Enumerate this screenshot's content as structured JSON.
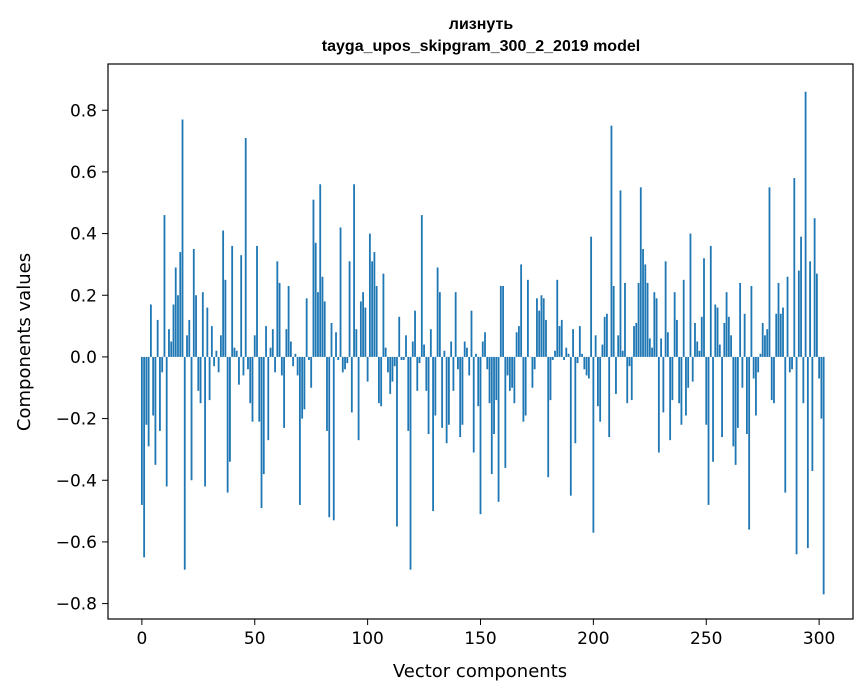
{
  "chart_data": {
    "type": "bar",
    "title": "лизнуть",
    "subtitle": "tayga_upos_skipgram_300_2_2019 model",
    "xlabel": "Vector components",
    "ylabel": "Components values",
    "xlim": [
      -15,
      315
    ],
    "ylim": [
      -0.85,
      0.95
    ],
    "xticks": [
      0,
      50,
      100,
      150,
      200,
      250,
      300
    ],
    "yticks": [
      -0.8,
      -0.6,
      -0.4,
      -0.2,
      0.0,
      0.2,
      0.4,
      0.6,
      0.8
    ],
    "ytick_labels": [
      "−0.8",
      "−0.6",
      "−0.4",
      "−0.2",
      "0.0",
      "0.2",
      "0.4",
      "0.6",
      "0.8"
    ],
    "bar_color": "#1f77b4",
    "grid": false,
    "values": [
      -0.48,
      -0.65,
      -0.22,
      -0.29,
      0.17,
      -0.19,
      -0.35,
      0.12,
      -0.24,
      -0.05,
      0.46,
      -0.42,
      0.09,
      0.05,
      0.17,
      0.29,
      0.2,
      0.34,
      0.77,
      -0.69,
      0.07,
      0.12,
      -0.4,
      0.35,
      0.2,
      -0.11,
      -0.15,
      0.21,
      -0.42,
      0.16,
      -0.14,
      0.1,
      -0.03,
      0.02,
      -0.05,
      0.07,
      0.41,
      0.25,
      -0.44,
      -0.34,
      0.36,
      0.03,
      0.02,
      -0.09,
      0.33,
      -0.06,
      0.71,
      -0.04,
      -0.15,
      -0.21,
      0.07,
      0.36,
      -0.21,
      -0.49,
      -0.38,
      0.1,
      -0.27,
      0.03,
      0.09,
      -0.05,
      0.31,
      0.24,
      -0.06,
      -0.23,
      0.09,
      0.23,
      0.05,
      -0.03,
      0.01,
      -0.06,
      -0.48,
      -0.2,
      -0.17,
      0.19,
      -0.01,
      -0.1,
      0.51,
      0.37,
      0.21,
      0.56,
      0.26,
      0.18,
      -0.24,
      -0.52,
      0.11,
      -0.53,
      0.08,
      -0.01,
      0.42,
      -0.05,
      -0.04,
      -0.02,
      0.31,
      -0.18,
      0.56,
      0.09,
      -0.27,
      0.18,
      0.21,
      0.16,
      -0.08,
      0.4,
      0.31,
      0.34,
      0.23,
      -0.15,
      -0.16,
      0.27,
      0.03,
      -0.05,
      -0.12,
      -0.08,
      -0.03,
      -0.55,
      0.13,
      -0.01,
      -0.01,
      0.07,
      -0.24,
      -0.69,
      0.05,
      0.15,
      -0.11,
      -0.02,
      0.46,
      0.04,
      -0.11,
      -0.25,
      0.09,
      -0.5,
      -0.19,
      0.29,
      0.21,
      -0.23,
      0.02,
      -0.28,
      -0.22,
      0.05,
      -0.11,
      0.21,
      -0.04,
      -0.26,
      -0.22,
      0.05,
      0.03,
      -0.06,
      0.15,
      -0.31,
      0.01,
      -0.16,
      -0.51,
      0.05,
      0.08,
      -0.04,
      -0.15,
      -0.38,
      -0.25,
      -0.14,
      -0.47,
      0.23,
      0.23,
      -0.36,
      -0.06,
      -0.11,
      -0.1,
      -0.15,
      0.08,
      0.1,
      0.3,
      -0.21,
      -0.19,
      0.25,
      0.0,
      -0.1,
      -0.04,
      0.19,
      0.15,
      0.2,
      0.19,
      0.12,
      -0.39,
      -0.14,
      -0.01,
      0.02,
      0.25,
      0.1,
      0.12,
      -0.01,
      0.03,
      0.01,
      -0.45,
      0.09,
      -0.28,
      -0.02,
      0.1,
      0.01,
      -0.04,
      -0.06,
      -0.07,
      0.39,
      -0.57,
      0.07,
      -0.16,
      -0.21,
      0.04,
      0.13,
      0.14,
      -0.26,
      0.75,
      0.23,
      -0.12,
      0.07,
      0.54,
      0.02,
      0.24,
      -0.15,
      -0.03,
      -0.14,
      0.1,
      0.11,
      0.24,
      0.55,
      0.35,
      0.3,
      0.24,
      0.06,
      0.03,
      0.21,
      0.19,
      -0.31,
      0.06,
      -0.18,
      0.31,
      0.08,
      -0.27,
      -0.14,
      0.21,
      0.12,
      -0.15,
      -0.22,
      0.25,
      -0.19,
      -0.1,
      0.4,
      -0.08,
      0.11,
      0.05,
      0.02,
      0.13,
      0.32,
      -0.22,
      -0.48,
      0.36,
      -0.34,
      0.17,
      0.16,
      0.04,
      -0.26,
      0.11,
      0.21,
      0.13,
      0.07,
      -0.29,
      -0.35,
      -0.23,
      0.24,
      -0.1,
      0.14,
      -0.25,
      -0.56,
      0.23,
      -0.07,
      -0.19,
      -0.05,
      0.01,
      0.11,
      0.07,
      0.09,
      0.55,
      -0.14,
      -0.15,
      0.14,
      0.24,
      0.14,
      0.16,
      -0.44,
      0.26,
      -0.05,
      -0.04,
      0.58,
      -0.64,
      0.28,
      0.39,
      -0.15,
      0.86,
      -0.62,
      0.31,
      -0.37,
      0.45,
      0.27,
      -0.07,
      -0.2,
      -0.77
    ]
  }
}
